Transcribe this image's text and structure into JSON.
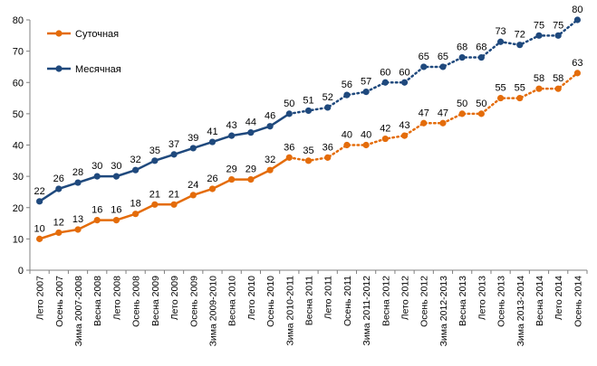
{
  "chart_data": {
    "type": "line",
    "categories": [
      "Лето 2007",
      "Осень 2007",
      "Зима 2007-2008",
      "Весна 2008",
      "Лето 2008",
      "Осень 2008",
      "Весна 2009",
      "Лето 2009",
      "Осень 2009",
      "Зима 2009-2010",
      "Весна 2010",
      "Лето 2010",
      "Осень 2010",
      "Зима 2010-2011",
      "Весна 2011",
      "Лето 2011",
      "Осень 2011",
      "Зима 2011-2012",
      "Весна 2012",
      "Лето 2012",
      "Осень 2012",
      "Зима 2012-2013",
      "Весна 2013",
      "Лето 2013",
      "Осень 2013",
      "Зима 2013-2014",
      "Весна 2014",
      "Лето 2014",
      "Осень 2014"
    ],
    "series": [
      {
        "name": "Суточная",
        "color": "#e46c0a",
        "values": [
          10,
          12,
          13,
          16,
          16,
          18,
          21,
          21,
          24,
          26,
          29,
          29,
          32,
          36,
          35,
          36,
          40,
          40,
          42,
          43,
          47,
          47,
          50,
          50,
          55,
          55,
          58,
          58,
          63
        ],
        "solid_until_index": 13
      },
      {
        "name": "Месячная",
        "color": "#1f497d",
        "values": [
          22,
          26,
          28,
          30,
          30,
          32,
          35,
          37,
          39,
          41,
          43,
          44,
          46,
          50,
          51,
          52,
          56,
          57,
          60,
          60,
          65,
          65,
          68,
          68,
          73,
          72,
          75,
          75,
          80
        ],
        "solid_until_index": 13
      }
    ],
    "ylim": [
      0,
      80
    ],
    "yticks": [
      0,
      10,
      20,
      30,
      40,
      50,
      60,
      70,
      80
    ],
    "grid": false,
    "legend_position": "top-left",
    "title": "",
    "xlabel": "",
    "ylabel": ""
  }
}
